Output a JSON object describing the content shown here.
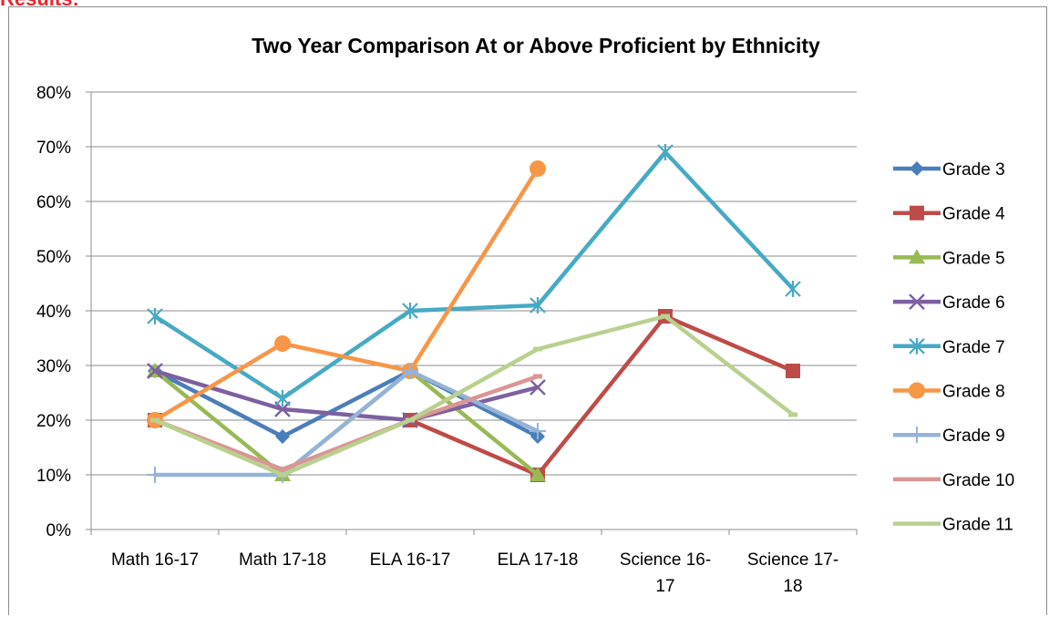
{
  "page": {
    "heading": "Results:"
  },
  "chart_data": {
    "type": "line",
    "title": "Two Year Comparison At or Above Proficient by Ethnicity",
    "xlabel": "",
    "ylabel": "",
    "ylim": [
      0,
      0.8
    ],
    "y_ticks": [
      "0%",
      "10%",
      "20%",
      "30%",
      "40%",
      "50%",
      "60%",
      "70%",
      "80%"
    ],
    "categories": [
      [
        "Math 16-17"
      ],
      [
        "Math 17-18"
      ],
      [
        "ELA 16-17"
      ],
      [
        "ELA 17-18"
      ],
      [
        "Science 16-",
        "17"
      ],
      [
        "Science 17-",
        "18"
      ]
    ],
    "grid": true,
    "legend_position": "right",
    "series": [
      {
        "name": "Grade 3",
        "color": "#4a7ebb",
        "marker": "diamond",
        "values": [
          0.29,
          0.17,
          0.29,
          0.17,
          null,
          null
        ]
      },
      {
        "name": "Grade 4",
        "color": "#be4b48",
        "marker": "square",
        "values": [
          0.2,
          null,
          0.2,
          0.1,
          0.39,
          0.29
        ]
      },
      {
        "name": "Grade 5",
        "color": "#98b954",
        "marker": "triangle",
        "values": [
          0.29,
          0.1,
          0.29,
          0.1,
          null,
          null
        ]
      },
      {
        "name": "Grade 6",
        "color": "#7d60a0",
        "marker": "x",
        "values": [
          0.29,
          0.22,
          0.2,
          0.26,
          null,
          null
        ]
      },
      {
        "name": "Grade 7",
        "color": "#46aac5",
        "marker": "star",
        "values": [
          0.39,
          0.24,
          0.4,
          0.41,
          0.69,
          0.44
        ]
      },
      {
        "name": "Grade 8",
        "color": "#f79646",
        "marker": "circle",
        "values": [
          0.2,
          0.34,
          0.29,
          0.66,
          null,
          null
        ]
      },
      {
        "name": "Grade 9",
        "color": "#95b3d7",
        "marker": "plus",
        "values": [
          0.1,
          0.1,
          0.29,
          0.18,
          null,
          null
        ]
      },
      {
        "name": "Grade 10",
        "color": "#d99694",
        "marker": "none",
        "values": [
          0.2,
          0.11,
          0.2,
          0.28,
          null,
          null
        ]
      },
      {
        "name": "Grade 11",
        "color": "#b9d08f",
        "marker": "none",
        "values": [
          0.2,
          0.1,
          0.2,
          0.33,
          0.39,
          0.21
        ]
      }
    ]
  }
}
